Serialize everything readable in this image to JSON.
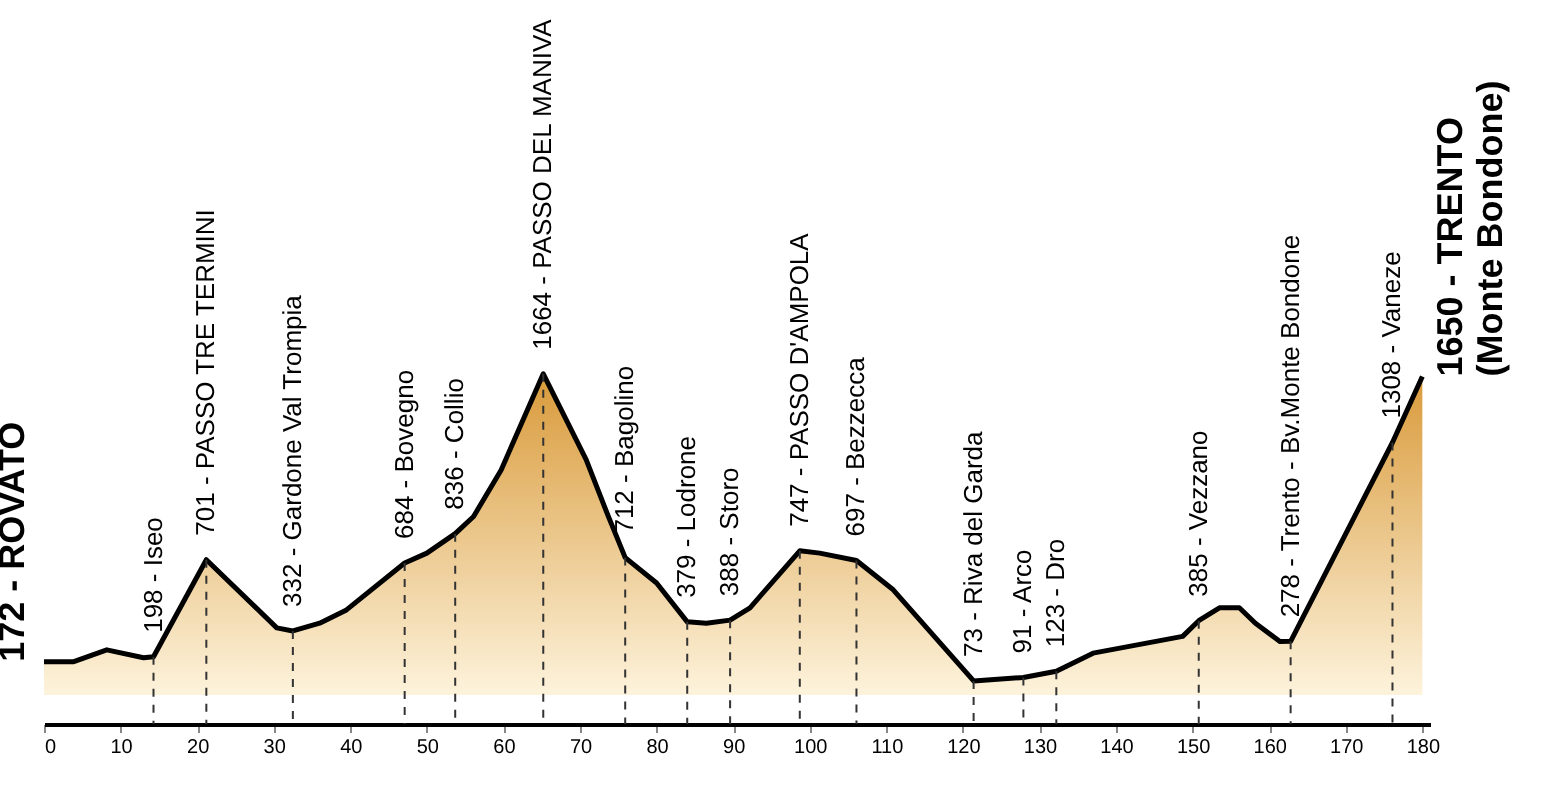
{
  "chart_data": {
    "type": "area",
    "x": [
      0,
      3.8,
      8.2,
      13,
      14.3,
      21.2,
      30.4,
      32.5,
      36,
      39.5,
      47.1,
      50,
      53.7,
      56.1,
      59.7,
      65.2,
      70.8,
      73.7,
      75.9,
      80,
      84,
      86.5,
      89.6,
      92.2,
      98.7,
      101.3,
      106.1,
      110.9,
      121.4,
      127.9,
      132.2,
      137,
      148.7,
      150.8,
      153.5,
      156.1,
      158.2,
      161.4,
      162.8,
      176.1,
      180
    ],
    "series": [
      {
        "color": "#d99a3a",
        "values": [
          172,
          172,
          234,
          193,
          198,
          701,
          348,
          332,
          372,
          441,
          684,
          735,
          836,
          925,
          1166,
          1664,
          1219,
          925,
          712,
          580,
          379,
          372,
          388,
          452,
          747,
          735,
          697,
          545,
          73,
          91,
          123,
          217,
          304,
          385,
          452,
          452,
          372,
          277,
          278,
          1308,
          1650
        ],
        "value_labels": [
          "172 - ROVATO",
          null,
          null,
          null,
          "198 - Iseo",
          "701 - PASSO TRE TERMINI",
          null,
          "332 - Gardone Val Trompia",
          null,
          null,
          "684 - Bovegno",
          null,
          "836 - Collio",
          null,
          null,
          "1664 - PASSO DEL MANIVA",
          null,
          null,
          "712 - Bagolino",
          null,
          "379 - Lodrone",
          null,
          "388 - Storo",
          null,
          "747 - PASSO D'AMPOLA",
          null,
          "697 - Bezzecca",
          null,
          "73 - Riva del Garda",
          "91 - Arco",
          "123 - Dro",
          null,
          null,
          "385 - Vezzano",
          null,
          null,
          null,
          null,
          "278 - Trento - Bv.Monte Bondone",
          "1308 - Vaneze",
          "1650 - TRENTO\n(Monte Bondone)"
        ]
      }
    ],
    "xlim": [
      0,
      181
    ],
    "xticks": [
      0,
      10,
      20,
      30,
      40,
      50,
      60,
      70,
      80,
      90,
      100,
      110,
      120,
      130,
      140,
      150,
      160,
      170,
      180
    ],
    "ylim": [
      -150,
      3600
    ],
    "tick_labels": "x",
    "grid": false
  }
}
